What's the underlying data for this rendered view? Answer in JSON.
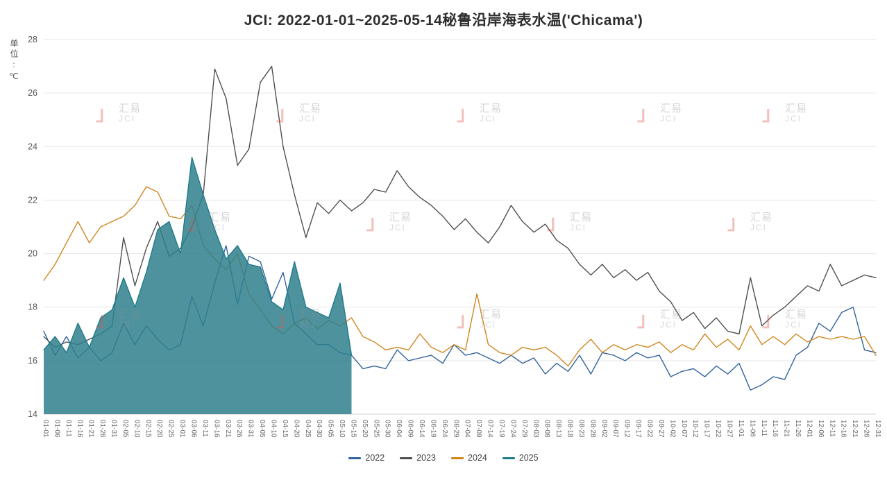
{
  "title": "JCI: 2022-01-01~2025-05-14秘鲁沿岸海表水温('Chicama')",
  "y_axis": {
    "unit_label": "单位:℃",
    "ticks": [
      14,
      16,
      18,
      20,
      22,
      24,
      26,
      28
    ]
  },
  "watermark": {
    "logo_glyph": "」",
    "brand_cn": "汇易",
    "brand_en": "JCI"
  },
  "chart_data": {
    "type": "line",
    "title": "JCI: 2022-01-01~2025-05-14秘鲁沿岸海表水温('Chicama')",
    "ylabel": "单位:℃",
    "ylim": [
      14,
      28
    ],
    "grid": "horizontal",
    "legend_position": "bottom",
    "x_tick_labels": [
      "01-01",
      "01-06",
      "01-11",
      "01-16",
      "01-21",
      "01-26",
      "01-31",
      "02-05",
      "02-10",
      "02-15",
      "02-20",
      "02-25",
      "03-01",
      "03-06",
      "03-11",
      "03-16",
      "03-21",
      "03-26",
      "03-31",
      "04-05",
      "04-10",
      "04-15",
      "04-20",
      "04-25",
      "04-30",
      "05-05",
      "05-10",
      "05-15",
      "05-20",
      "05-25",
      "05-30",
      "06-04",
      "06-09",
      "06-14",
      "06-19",
      "06-24",
      "06-29",
      "07-04",
      "07-09",
      "07-14",
      "07-19",
      "07-24",
      "07-29",
      "08-03",
      "08-08",
      "08-13",
      "08-18",
      "08-23",
      "08-28",
      "09-02",
      "09-07",
      "09-12",
      "09-17",
      "09-22",
      "09-27",
      "10-02",
      "10-07",
      "10-12",
      "10-17",
      "10-22",
      "10-27",
      "11-01",
      "11-06",
      "11-11",
      "11-16",
      "11-21",
      "11-26",
      "12-01",
      "12-06",
      "12-11",
      "12-16",
      "12-21",
      "12-26",
      "12-31"
    ],
    "series": [
      {
        "name": "2022",
        "color": "#31639c",
        "values": [
          17.1,
          16.2,
          16.9,
          16.1,
          16.5,
          16.0,
          16.3,
          17.4,
          16.6,
          17.3,
          16.8,
          16.4,
          16.6,
          18.4,
          17.3,
          18.9,
          20.3,
          18.1,
          19.9,
          19.7,
          18.3,
          19.3,
          17.4,
          17.0,
          16.6,
          16.6,
          16.3,
          16.2,
          15.7,
          15.8,
          15.7,
          16.4,
          16.0,
          16.1,
          16.2,
          15.9,
          16.6,
          16.2,
          16.3,
          16.1,
          15.9,
          16.2,
          15.9,
          16.1,
          15.5,
          15.9,
          15.6,
          16.2,
          15.5,
          16.3,
          16.2,
          16.0,
          16.3,
          16.1,
          16.2,
          15.4,
          15.6,
          15.7,
          15.4,
          15.8,
          15.5,
          15.9,
          14.9,
          15.1,
          15.4,
          15.3,
          16.2,
          16.5,
          17.4,
          17.1,
          17.8,
          18.0,
          16.4,
          16.3
        ]
      },
      {
        "name": "2023",
        "color": "#4f4f4f",
        "values": [
          16.9,
          16.5,
          16.7,
          16.6,
          16.8,
          17.0,
          17.3,
          20.6,
          18.8,
          20.2,
          21.2,
          19.9,
          20.2,
          21.0,
          22.2,
          26.9,
          25.8,
          23.3,
          23.9,
          26.4,
          27.0,
          24.0,
          22.2,
          20.6,
          21.9,
          21.5,
          22.0,
          21.6,
          21.9,
          22.4,
          22.3,
          23.1,
          22.5,
          22.1,
          21.8,
          21.4,
          20.9,
          21.3,
          20.8,
          20.4,
          21.0,
          21.8,
          21.2,
          20.8,
          21.1,
          20.5,
          20.2,
          19.6,
          19.2,
          19.6,
          19.1,
          19.4,
          19.0,
          19.3,
          18.6,
          18.2,
          17.5,
          17.8,
          17.2,
          17.6,
          17.1,
          17.0,
          19.1,
          17.3,
          17.7,
          18.0,
          18.4,
          18.8,
          18.6,
          19.6,
          18.8,
          19.0,
          19.2,
          19.1
        ]
      },
      {
        "name": "2024",
        "color": "#d0861f",
        "values": [
          19.0,
          19.6,
          20.4,
          21.2,
          20.4,
          21.0,
          21.2,
          21.4,
          21.8,
          22.5,
          22.3,
          21.4,
          21.3,
          21.8,
          20.3,
          19.8,
          19.4,
          20.0,
          18.5,
          17.9,
          17.3,
          17.0,
          17.4,
          17.6,
          17.2,
          17.5,
          17.3,
          17.6,
          16.9,
          16.7,
          16.4,
          16.5,
          16.4,
          17.0,
          16.5,
          16.3,
          16.6,
          16.4,
          18.5,
          16.6,
          16.3,
          16.2,
          16.5,
          16.4,
          16.5,
          16.2,
          15.8,
          16.4,
          16.8,
          16.3,
          16.6,
          16.4,
          16.6,
          16.5,
          16.7,
          16.3,
          16.6,
          16.4,
          17.0,
          16.5,
          16.8,
          16.4,
          17.3,
          16.6,
          16.9,
          16.6,
          17.0,
          16.7,
          16.9,
          16.8,
          16.9,
          16.8,
          16.9,
          16.2
        ]
      },
      {
        "name": "2025",
        "color": "#1f7c8a",
        "area": true,
        "fill": "#2f7f8d",
        "fill_opacity": 0.85,
        "values": [
          16.4,
          16.9,
          16.3,
          17.4,
          16.5,
          17.6,
          17.9,
          19.1,
          18.0,
          19.3,
          20.9,
          21.2,
          20.0,
          23.6,
          22.2,
          20.9,
          19.8,
          20.3,
          19.6,
          19.5,
          18.2,
          17.9,
          19.7,
          18.0,
          17.8,
          17.6,
          18.9,
          16.2
        ]
      }
    ]
  }
}
